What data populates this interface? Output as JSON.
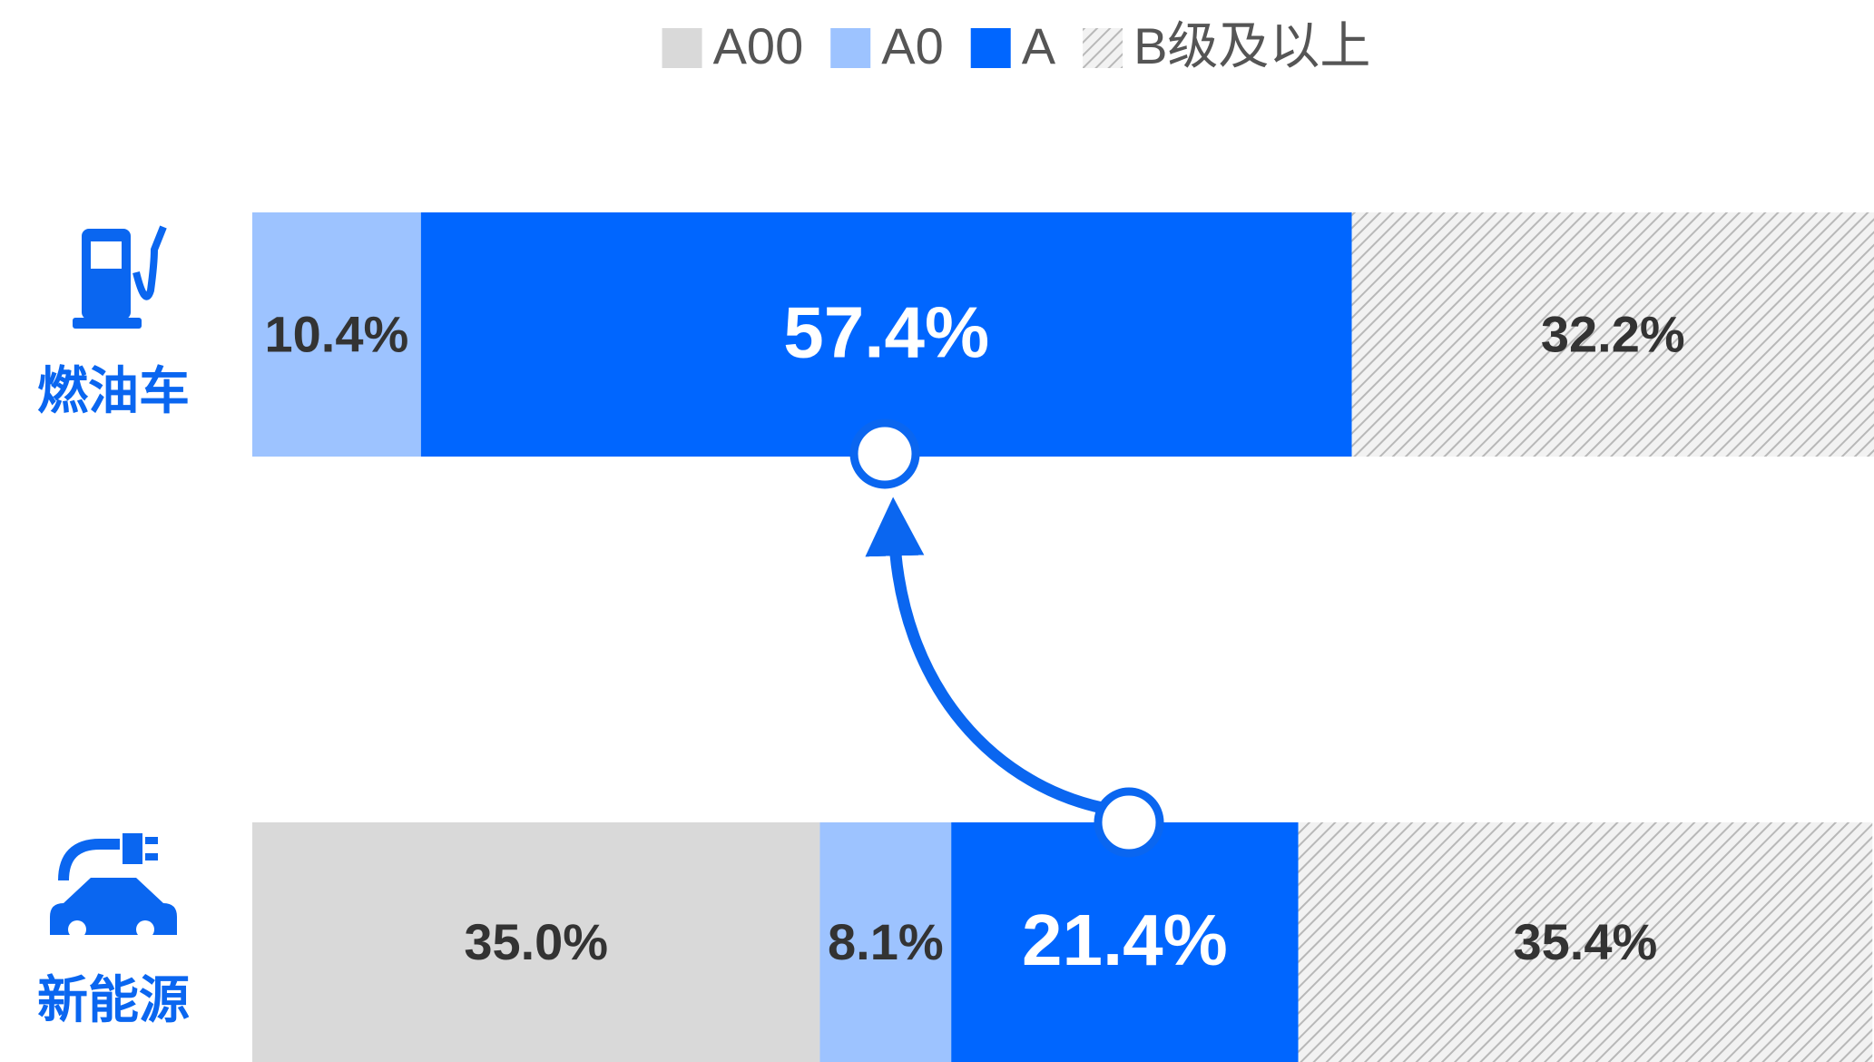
{
  "chart_data": {
    "type": "bar",
    "orientation": "horizontal",
    "stacked": true,
    "categories": [
      "燃油车",
      "新能源"
    ],
    "xlim": [
      0,
      100
    ],
    "series": [
      {
        "name": "A00",
        "color": "#d9d9d9",
        "label_color": "#333333",
        "values": [
          0,
          35.0
        ],
        "value_labels": [
          null,
          "35.0%"
        ]
      },
      {
        "name": "A0",
        "color": "#9dc3ff",
        "label_color": "#333333",
        "values": [
          10.4,
          8.1
        ],
        "value_labels": [
          "10.4%",
          "8.1%"
        ]
      },
      {
        "name": "A",
        "color": "#0066ff",
        "label_color": "#ffffff",
        "values": [
          57.4,
          21.4
        ],
        "value_labels": [
          "57.4%",
          "21.4%"
        ]
      },
      {
        "name": "B级及以上",
        "color": "hatch",
        "label_color": "#333333",
        "values": [
          32.2,
          35.4
        ],
        "value_labels": [
          "32.2%",
          "35.4%"
        ]
      }
    ],
    "legend": "top"
  }
}
